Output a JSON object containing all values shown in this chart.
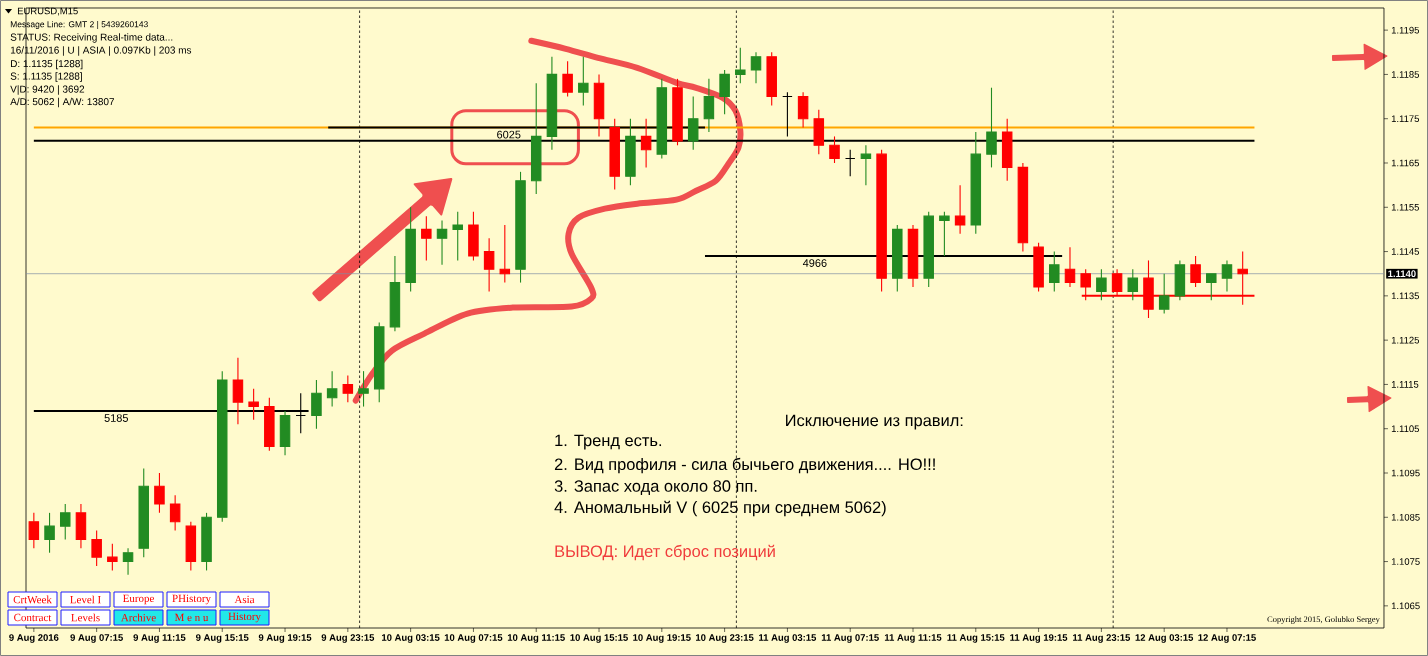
{
  "chart_data": {
    "type": "candlestick",
    "title": "EURUSD,M15",
    "x": [
      "2016-08-09T03:15",
      "2016-08-09T04:15",
      "2016-08-09T05:15",
      "2016-08-09T06:15",
      "2016-08-09T07:15",
      "2016-08-09T08:15",
      "2016-08-09T09:15",
      "2016-08-09T10:15",
      "2016-08-09T11:15",
      "2016-08-09T12:15",
      "2016-08-09T13:15",
      "2016-08-09T14:15",
      "2016-08-09T15:15",
      "2016-08-09T16:15",
      "2016-08-09T17:15",
      "2016-08-09T18:15",
      "2016-08-09T19:15",
      "2016-08-09T20:15",
      "2016-08-09T21:15",
      "2016-08-09T22:15",
      "2016-08-09T23:15",
      "2016-08-10T00:15",
      "2016-08-10T01:15",
      "2016-08-10T02:15",
      "2016-08-10T03:15",
      "2016-08-10T04:15",
      "2016-08-10T05:15",
      "2016-08-10T06:15",
      "2016-08-10T07:15",
      "2016-08-10T08:15",
      "2016-08-10T09:15",
      "2016-08-10T10:15",
      "2016-08-10T11:15",
      "2016-08-10T12:15",
      "2016-08-10T13:15",
      "2016-08-10T14:15",
      "2016-08-10T15:15",
      "2016-08-10T16:15",
      "2016-08-10T17:15",
      "2016-08-10T18:15",
      "2016-08-10T19:15",
      "2016-08-10T20:15",
      "2016-08-10T21:15",
      "2016-08-10T22:15",
      "2016-08-10T23:15",
      "2016-08-11T00:15",
      "2016-08-11T01:15",
      "2016-08-11T02:15",
      "2016-08-11T03:15",
      "2016-08-11T04:15",
      "2016-08-11T05:15",
      "2016-08-11T06:15",
      "2016-08-11T07:15",
      "2016-08-11T08:15",
      "2016-08-11T09:15",
      "2016-08-11T10:15",
      "2016-08-11T11:15",
      "2016-08-11T12:15",
      "2016-08-11T13:15",
      "2016-08-11T14:15",
      "2016-08-11T15:15",
      "2016-08-11T16:15",
      "2016-08-11T17:15",
      "2016-08-11T18:15",
      "2016-08-11T19:15",
      "2016-08-11T20:15",
      "2016-08-11T21:15",
      "2016-08-11T22:15",
      "2016-08-11T23:15",
      "2016-08-12T00:15",
      "2016-08-12T01:15",
      "2016-08-12T02:15",
      "2016-08-12T03:15",
      "2016-08-12T04:15",
      "2016-08-12T05:15",
      "2016-08-12T06:15",
      "2016-08-12T07:15",
      "2016-08-12T08:15"
    ],
    "ohlc": [
      [
        1.1084,
        1.1086,
        1.1078,
        1.108
      ],
      [
        1.108,
        1.1086,
        1.1077,
        1.1083
      ],
      [
        1.1083,
        1.1088,
        1.108,
        1.1086
      ],
      [
        1.1086,
        1.1088,
        1.1078,
        1.108
      ],
      [
        1.108,
        1.1082,
        1.1074,
        1.1076
      ],
      [
        1.1076,
        1.1079,
        1.1073,
        1.1075
      ],
      [
        1.1075,
        1.1078,
        1.1072,
        1.1077
      ],
      [
        1.1078,
        1.1096,
        1.1076,
        1.1092
      ],
      [
        1.1092,
        1.1095,
        1.1086,
        1.1088
      ],
      [
        1.1088,
        1.109,
        1.1082,
        1.1084
      ],
      [
        1.1083,
        1.1084,
        1.1073,
        1.1075
      ],
      [
        1.1075,
        1.1086,
        1.1073,
        1.1085
      ],
      [
        1.1085,
        1.1118,
        1.1084,
        1.1116
      ],
      [
        1.1116,
        1.1121,
        1.1106,
        1.1111
      ],
      [
        1.1111,
        1.1114,
        1.1107,
        1.111
      ],
      [
        1.111,
        1.1112,
        1.11,
        1.1101
      ],
      [
        1.1101,
        1.1109,
        1.1099,
        1.1108
      ],
      [
        1.1108,
        1.1113,
        1.1104,
        1.1108
      ],
      [
        1.1108,
        1.1116,
        1.1105,
        1.1113
      ],
      [
        1.1112,
        1.1118,
        1.111,
        1.1114
      ],
      [
        1.1115,
        1.1117,
        1.1111,
        1.1113
      ],
      [
        1.1113,
        1.1118,
        1.111,
        1.1114
      ],
      [
        1.1114,
        1.1129,
        1.1111,
        1.1128
      ],
      [
        1.1128,
        1.1144,
        1.1127,
        1.1138
      ],
      [
        1.1138,
        1.1155,
        1.1136,
        1.115
      ],
      [
        1.115,
        1.1153,
        1.1143,
        1.1148
      ],
      [
        1.1148,
        1.1152,
        1.1142,
        1.115
      ],
      [
        1.115,
        1.1154,
        1.1143,
        1.1151
      ],
      [
        1.1151,
        1.1154,
        1.1143,
        1.1144
      ],
      [
        1.1145,
        1.1148,
        1.1136,
        1.1141
      ],
      [
        1.1141,
        1.1151,
        1.1138,
        1.114
      ],
      [
        1.1141,
        1.1163,
        1.1138,
        1.1161
      ],
      [
        1.1161,
        1.1183,
        1.1158,
        1.1171
      ],
      [
        1.1171,
        1.1189,
        1.1168,
        1.1185
      ],
      [
        1.1185,
        1.1188,
        1.118,
        1.1181
      ],
      [
        1.1181,
        1.1189,
        1.1178,
        1.1183
      ],
      [
        1.1183,
        1.1185,
        1.1171,
        1.1175
      ],
      [
        1.1173,
        1.1175,
        1.1159,
        1.1162
      ],
      [
        1.1162,
        1.1175,
        1.116,
        1.1171
      ],
      [
        1.1171,
        1.1175,
        1.1164,
        1.1168
      ],
      [
        1.1167,
        1.1184,
        1.1166,
        1.1182
      ],
      [
        1.1182,
        1.1184,
        1.1169,
        1.117
      ],
      [
        1.117,
        1.118,
        1.1168,
        1.1175
      ],
      [
        1.1175,
        1.1184,
        1.1172,
        1.118
      ],
      [
        1.118,
        1.1186,
        1.1176,
        1.1185
      ],
      [
        1.1185,
        1.1191,
        1.1183,
        1.1186
      ],
      [
        1.1186,
        1.119,
        1.1183,
        1.1189
      ],
      [
        1.1189,
        1.119,
        1.1178,
        1.118
      ],
      [
        1.118,
        1.1181,
        1.1171,
        1.118
      ],
      [
        1.118,
        1.1181,
        1.1173,
        1.1175
      ],
      [
        1.1175,
        1.1177,
        1.1167,
        1.1169
      ],
      [
        1.1169,
        1.1171,
        1.1165,
        1.1166
      ],
      [
        1.1166,
        1.1168,
        1.1162,
        1.1166
      ],
      [
        1.1166,
        1.1169,
        1.116,
        1.1167
      ],
      [
        1.1167,
        1.1168,
        1.1136,
        1.1139
      ],
      [
        1.1139,
        1.1151,
        1.1136,
        1.115
      ],
      [
        1.115,
        1.1151,
        1.1137,
        1.1139
      ],
      [
        1.1139,
        1.1154,
        1.1137,
        1.1153
      ],
      [
        1.1152,
        1.1154,
        1.1144,
        1.1153
      ],
      [
        1.1153,
        1.116,
        1.1149,
        1.1151
      ],
      [
        1.1151,
        1.1172,
        1.1149,
        1.1167
      ],
      [
        1.1167,
        1.1182,
        1.1164,
        1.1172
      ],
      [
        1.1172,
        1.1175,
        1.1161,
        1.1164
      ],
      [
        1.1164,
        1.1165,
        1.1145,
        1.1147
      ],
      [
        1.1146,
        1.1147,
        1.1136,
        1.1137
      ],
      [
        1.1138,
        1.1145,
        1.1136,
        1.1142
      ],
      [
        1.1141,
        1.1146,
        1.1137,
        1.1138
      ],
      [
        1.114,
        1.1141,
        1.1134,
        1.1137
      ],
      [
        1.1136,
        1.1141,
        1.1134,
        1.1139
      ],
      [
        1.114,
        1.1141,
        1.1135,
        1.1136
      ],
      [
        1.1136,
        1.1141,
        1.1134,
        1.1139
      ],
      [
        1.1139,
        1.1143,
        1.113,
        1.1132
      ],
      [
        1.1132,
        1.114,
        1.1131,
        1.1135
      ],
      [
        1.1135,
        1.1143,
        1.1134,
        1.1142
      ],
      [
        1.1142,
        1.1144,
        1.1137,
        1.1138
      ],
      [
        1.1138,
        1.114,
        1.1134,
        1.114
      ],
      [
        1.1139,
        1.1143,
        1.1136,
        1.1142
      ],
      [
        1.1141,
        1.1145,
        1.1133,
        1.114
      ]
    ],
    "colors": [
      "#ff0000",
      "#228b22",
      "#228b22",
      "#ff0000",
      "#ff0000",
      "#ff0000",
      "#228b22",
      "#228b22",
      "#ff0000",
      "#ff0000",
      "#ff0000",
      "#228b22",
      "#228b22",
      "#ff0000",
      "#ff0000",
      "#ff0000",
      "#228b22",
      "#000000",
      "#228b22",
      "#228b22",
      "#ff0000",
      "#228b22",
      "#228b22",
      "#228b22",
      "#228b22",
      "#ff0000",
      "#228b22",
      "#228b22",
      "#ff0000",
      "#ff0000",
      "#ff0000",
      "#228b22",
      "#228b22",
      "#228b22",
      "#ff0000",
      "#228b22",
      "#ff0000",
      "#ff0000",
      "#228b22",
      "#ff0000",
      "#228b22",
      "#ff0000",
      "#228b22",
      "#228b22",
      "#228b22",
      "#228b22",
      "#228b22",
      "#ff0000",
      "#000000",
      "#ff0000",
      "#ff0000",
      "#ff0000",
      "#000000",
      "#228b22",
      "#ff0000",
      "#228b22",
      "#ff0000",
      "#228b22",
      "#228b22",
      "#ff0000",
      "#228b22",
      "#228b22",
      "#ff0000",
      "#ff0000",
      "#ff0000",
      "#228b22",
      "#ff0000",
      "#ff0000",
      "#228b22",
      "#ff0000",
      "#228b22",
      "#ff0000",
      "#228b22",
      "#228b22",
      "#ff0000",
      "#228b22",
      "#228b22",
      "#ff0000"
    ],
    "series": [
      {
        "type": "line",
        "x": [
          "2016-08-09T03:15",
          "2016-08-12T09:00"
        ],
        "values": [
          1.1173,
          1.1173
        ],
        "color": "#ffa500"
      },
      {
        "type": "line",
        "x": [
          "2016-08-09T03:15",
          "2016-08-12T09:00"
        ],
        "values": [
          1.117,
          1.117
        ],
        "color": "#000000"
      },
      {
        "type": "line",
        "x": [
          "2016-08-09T03:15",
          "2016-08-09T20:45"
        ],
        "values": [
          1.1109,
          1.1109
        ],
        "color": "#000000"
      },
      {
        "type": "line",
        "x": [
          "2016-08-09T22:00",
          "2016-08-10T22:00"
        ],
        "values": [
          1.1173,
          1.1173
        ],
        "color": "#000000"
      },
      {
        "type": "line",
        "x": [
          "2016-08-10T22:00",
          "2016-08-11T20:45"
        ],
        "values": [
          1.1144,
          1.1144
        ],
        "color": "#000000"
      },
      {
        "type": "line",
        "x": [
          "2016-08-11T22:00",
          "2016-08-12T09:00"
        ],
        "values": [
          1.1135,
          1.1135
        ],
        "color": "#ff0000"
      }
    ],
    "xlim": [
      "2016-08-09T02:45",
      "2016-08-12T17:15"
    ],
    "xticks": [
      {
        "value": "2016-08-09T03:15",
        "label": "9 Aug 2016"
      },
      {
        "value": "2016-08-09T07:15",
        "label": "9 Aug 07:15"
      },
      {
        "value": "2016-08-09T11:15",
        "label": "9 Aug 11:15"
      },
      {
        "value": "2016-08-09T15:15",
        "label": "9 Aug 15:15"
      },
      {
        "value": "2016-08-09T19:15",
        "label": "9 Aug 19:15"
      },
      {
        "value": "2016-08-09T23:15",
        "label": "9 Aug 23:15"
      },
      {
        "value": "2016-08-10T03:15",
        "label": "10 Aug 03:15"
      },
      {
        "value": "2016-08-10T07:15",
        "label": "10 Aug 07:15"
      },
      {
        "value": "2016-08-10T11:15",
        "label": "10 Aug 11:15"
      },
      {
        "value": "2016-08-10T15:15",
        "label": "10 Aug 15:15"
      },
      {
        "value": "2016-08-10T19:15",
        "label": "10 Aug 19:15"
      },
      {
        "value": "2016-08-10T23:15",
        "label": "10 Aug 23:15"
      },
      {
        "value": "2016-08-11T03:15",
        "label": "11 Aug 03:15"
      },
      {
        "value": "2016-08-11T07:15",
        "label": "11 Aug 07:15"
      },
      {
        "value": "2016-08-11T11:15",
        "label": "11 Aug 11:15"
      },
      {
        "value": "2016-08-11T15:15",
        "label": "11 Aug 15:15"
      },
      {
        "value": "2016-08-11T19:15",
        "label": "11 Aug 19:15"
      },
      {
        "value": "2016-08-11T23:15",
        "label": "11 Aug 23:15"
      },
      {
        "value": "2016-08-12T03:15",
        "label": "12 Aug 03:15"
      },
      {
        "value": "2016-08-12T07:15",
        "label": "12 Aug 07:15"
      }
    ],
    "ylim": [
      1.106,
      1.12
    ],
    "yticks": [
      1.1065,
      1.1075,
      1.1085,
      1.1095,
      1.1105,
      1.1115,
      1.1125,
      1.1135,
      1.1145,
      1.1155,
      1.1165,
      1.1175,
      1.1185,
      1.1195
    ],
    "ref_lines": [
      {
        "axis": "y",
        "value": 1.114,
        "label": "1.1140",
        "color": "#7f8ea3"
      },
      {
        "axis": "x",
        "value": "2016-08-10T00:00",
        "color": "#000000",
        "line_style": "dotted"
      },
      {
        "axis": "x",
        "value": "2016-08-11T00:00",
        "color": "#000000",
        "line_style": "dotted"
      },
      {
        "axis": "x",
        "value": "2016-08-12T00:00",
        "color": "#000000",
        "line_style": "dotted"
      }
    ],
    "annotations": [
      "Message Line: GMT 2 | 5439260143",
      "STATUS: Receiving Real-time data...",
      "16/11/2016 | U | ASIA | 0.097Kb | 203 ms",
      "D: 1.1135 [1288]",
      "S: 1.1135 [1288]",
      "V|D: 9420 | 3692",
      "A/D: 5062 | A/W: 13807",
      {
        "text": "5185",
        "x": "2016-08-09T08:30",
        "y": 1.1109
      },
      {
        "text": "6025",
        "x": "2016-08-10T09:30",
        "y": 1.1173
      },
      {
        "text": "4966",
        "x": "2016-08-11T05:00",
        "y": 1.1144
      },
      "Исключение из правил:",
      "1. Тренд есть.",
      "2. Вид профиля - сила бычьего движения.... НО!!!",
      "3. Запас хода около 80 пп.",
      "4. Аномальный V ( 6025 при среднем 5062)",
      "ВЫВОД: Идет сброс позиций",
      "CrtWeek",
      "Level I",
      "Europe",
      "PHistory",
      "Asia",
      "Contract",
      "Levels",
      "Archive",
      "M e n u",
      "History",
      "Copyright 2015, Golubko Sergey"
    ]
  }
}
